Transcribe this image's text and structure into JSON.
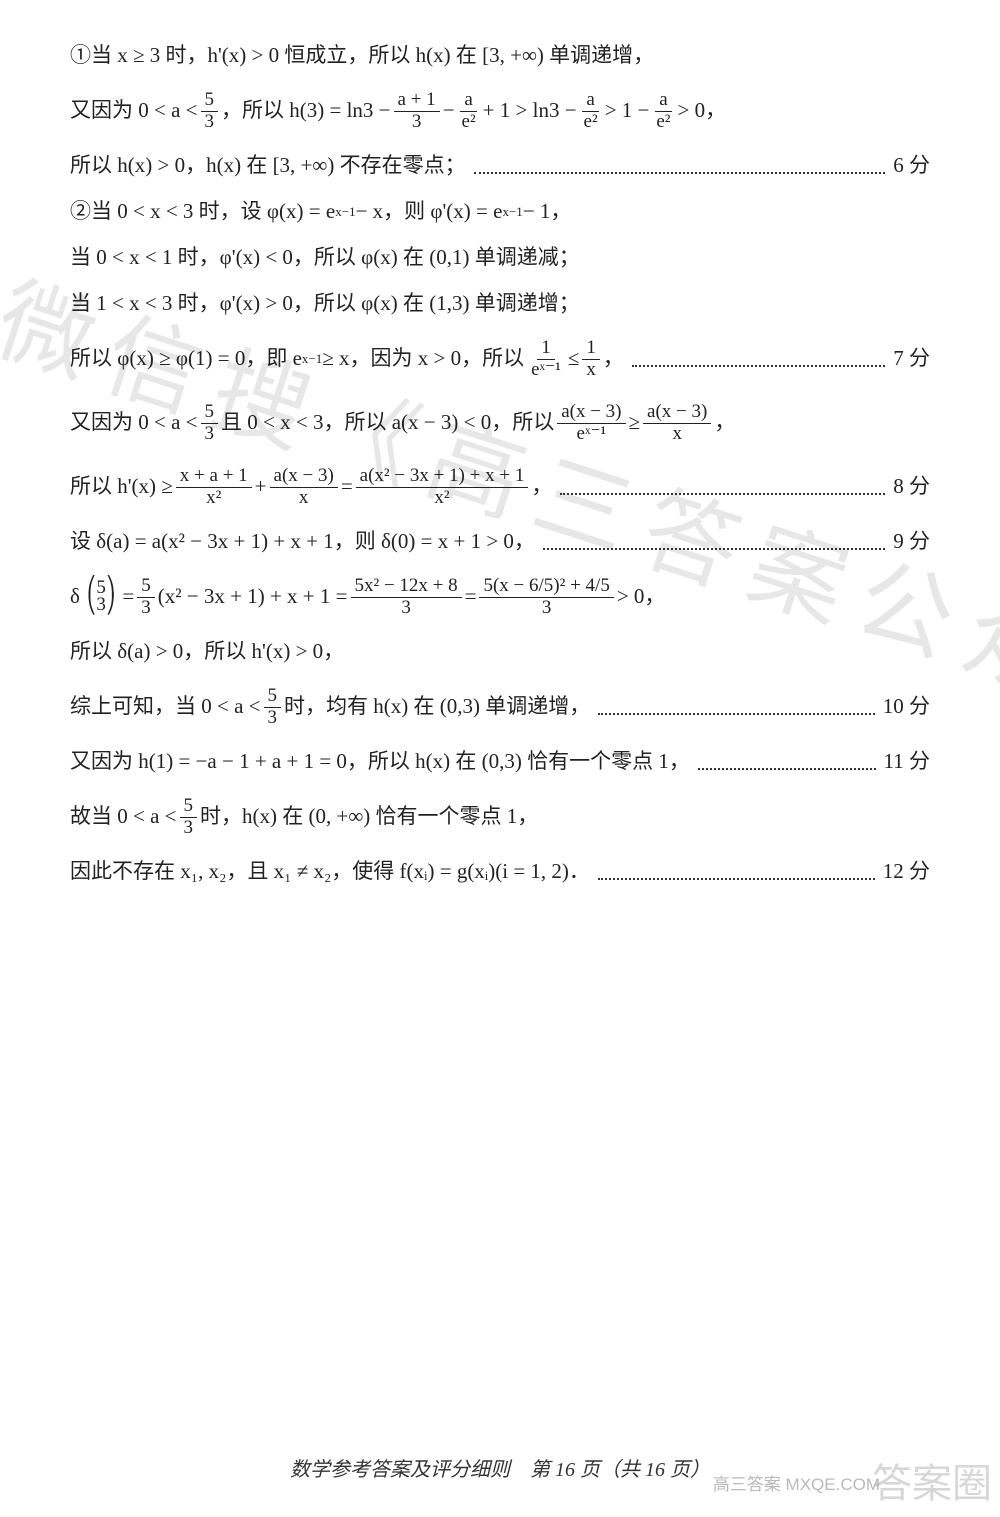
{
  "lines": {
    "l1a": "①当 x ≥ 3 时，h'(x) > 0 恒成立，所以 h(x) 在 [3, +∞) 单调递增，",
    "l2a": "又因为 0 < a < ",
    "l2b": "，所以 h(3) = ln3 − ",
    "l2c": " − ",
    "l2d": " + 1 > ln3 − ",
    "l2e": " > 1 − ",
    "l2f": " > 0，",
    "l3a": "所以 h(x) > 0，h(x) 在 [3, +∞) 不存在零点；",
    "l4a": "②当 0 < x < 3 时，设 φ(x) = e",
    "l4b": " − x，则 φ'(x) = e",
    "l4c": " − 1，",
    "l5a": "当 0 < x < 1 时，φ'(x) < 0，所以 φ(x) 在 (0,1) 单调递减；",
    "l6a": "当 1 < x < 3 时，φ'(x) > 0，所以 φ(x) 在 (1,3) 单调递增；",
    "l7a": "所以 φ(x) ≥ φ(1) = 0，即 e",
    "l7b": " ≥ x，因为 x > 0，所以 ",
    "l7c": " ≤ ",
    "l7d": " ，",
    "l8a": "又因为 0 < a < ",
    "l8b": " 且 0 < x < 3，所以 a(x − 3) < 0，所以 ",
    "l8c": " ≥ ",
    "l8d": " ，",
    "l9a": "所以 h'(x) ≥ ",
    "l9b": " + ",
    "l9c": " = ",
    "l9d": " ，",
    "l10a": "设 δ(a) = a(x² − 3x + 1) + x + 1，则 δ(0) = x + 1 > 0，",
    "l11a": "δ",
    "l11b": " = ",
    "l11c": "(x² − 3x + 1) + x + 1 = ",
    "l11d": " = ",
    "l11e": " > 0，",
    "l12a": "所以 δ(a) > 0，所以 h'(x) > 0，",
    "l13a": "综上可知，当 0 < a < ",
    "l13b": " 时，均有 h(x) 在 (0,3) 单调递增，",
    "l14a": "又因为 h(1) = −a − 1 + a + 1 = 0，所以 h(x) 在 (0,3) 恰有一个零点 1，",
    "l15a": "故当 0 < a < ",
    "l15b": " 时，h(x) 在 (0, +∞) 恰有一个零点 1，",
    "l16a": "因此不存在 x₁, x₂，且 x₁ ≠ x₂，使得 f(xᵢ) = g(xᵢ)(i = 1, 2)．"
  },
  "fracs": {
    "five_thirds_n": "5",
    "five_thirds_d": "3",
    "a1_3_n": "a + 1",
    "a1_3_d": "3",
    "a_e2_n": "a",
    "a_e2_d": "e²",
    "one_ex_n": "1",
    "one_ex_d": "eˣ⁻¹",
    "one_x_n": "1",
    "one_x_d": "x",
    "ax3_ex_n": "a(x − 3)",
    "ax3_ex_d": "eˣ⁻¹",
    "ax3_x_n": "a(x − 3)",
    "ax3_x_d": "x",
    "h1_n": "x + a + 1",
    "h1_d": "x²",
    "h2_n": "a(x − 3)",
    "h2_d": "x",
    "h3_n": "a(x² − 3x + 1) + x + 1",
    "h3_d": "x²",
    "d11_n": "5x² − 12x + 8",
    "d11_d": "3",
    "d12_n": "5(x − 6/5)² + 4/5",
    "d12_d": "3"
  },
  "scores": {
    "s6": "6 分",
    "s7": "7 分",
    "s8": "8 分",
    "s9": "9 分",
    "s10": "10 分",
    "s11": "11 分",
    "s12": "12 分"
  },
  "exp": {
    "xm1": "x−1"
  },
  "paren53": "(5/3)",
  "footer": "数学参考答案及评分细则　第 16 页（共 16 页）",
  "watermark_main": "微信搜《高三答案公众号》",
  "watermark_corner": "答案圈",
  "watermark_small": "高三答案  MXQE.COM",
  "colors": {
    "text": "#222222",
    "bg": "#ffffff"
  }
}
